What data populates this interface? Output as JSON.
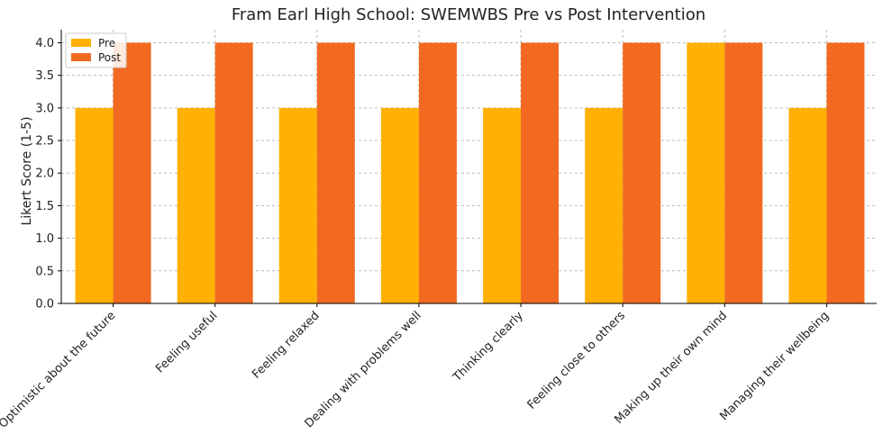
{
  "chart_data": {
    "type": "bar",
    "title": "Fram Earl High School: SWEMWBS Pre vs Post Intervention",
    "xlabel": "",
    "ylabel": "Likert Score (1-5)",
    "ylim": [
      0,
      4.2
    ],
    "yticks": [
      0.0,
      0.5,
      1.0,
      1.5,
      2.0,
      2.5,
      3.0,
      3.5,
      4.0
    ],
    "ytick_labels": [
      "0.0",
      "0.5",
      "1.0",
      "1.5",
      "2.0",
      "2.5",
      "3.0",
      "3.5",
      "4.0"
    ],
    "grid": true,
    "legend_position": "top-left",
    "categories": [
      "Optimistic about the future",
      "Feeling useful",
      "Feeling relaxed",
      "Dealing with problems well",
      "Thinking clearly",
      "Feeling close to others",
      "Making up their own mind",
      "Managing their wellbeing"
    ],
    "series": [
      {
        "name": "Pre",
        "color": "#FFB000",
        "values": [
          3,
          3,
          3,
          3,
          3,
          3,
          4,
          3
        ]
      },
      {
        "name": "Post",
        "color": "#F26A21",
        "values": [
          4,
          4,
          4,
          4,
          4,
          4,
          4,
          4
        ]
      }
    ]
  }
}
